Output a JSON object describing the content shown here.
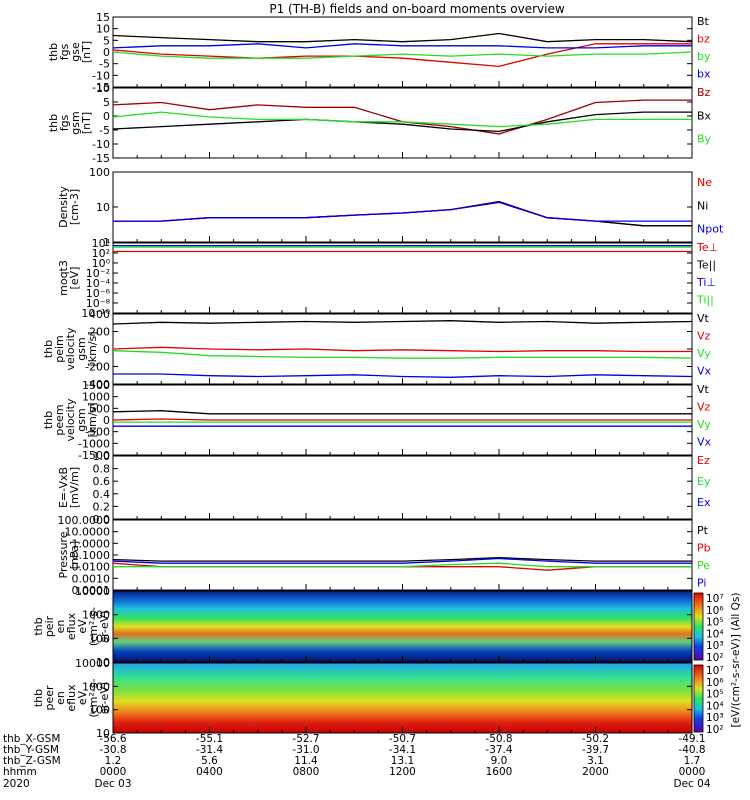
{
  "title": "P1  (TH-B) fields and on-board moments overview",
  "colors": {
    "black": "#000000",
    "red": "#e00000",
    "green": "#22dd22",
    "blue": "#0000e0",
    "darkred": "#a00000"
  },
  "panels": [
    {
      "ylabel": [
        "thb",
        "fgs",
        "gse",
        "[nT]"
      ],
      "yticks": [
        "15",
        "10",
        "5",
        "0",
        "-5",
        "-10",
        "-15"
      ],
      "legend": [
        {
          "t": "Bt",
          "c": "black"
        },
        {
          "t": "bz",
          "c": "red"
        },
        {
          "t": "by",
          "c": "green"
        },
        {
          "t": "bx",
          "c": "blue"
        }
      ]
    },
    {
      "ylabel": [
        "thb",
        "fgs",
        "gsm",
        "[nT]"
      ],
      "yticks": [
        "10",
        "5",
        "0",
        "-5",
        "-10",
        "-15"
      ],
      "legend": [
        {
          "t": "Bz",
          "c": "darkred"
        },
        {
          "t": "Bx",
          "c": "black"
        },
        {
          "t": "By",
          "c": "green"
        }
      ]
    },
    {
      "ylabel": [
        "Density",
        "[cm-3]"
      ],
      "yticks": [
        "100",
        "10",
        "1"
      ],
      "legend": [
        {
          "t": "Ne",
          "c": "red"
        },
        {
          "t": "Ni",
          "c": "black"
        },
        {
          "t": "Npot",
          "c": "blue"
        }
      ]
    },
    {
      "ylabel": [
        "moqt3",
        "[eV]"
      ],
      "yticks": [
        "10⁴",
        "10²",
        "10⁰",
        "10⁻²",
        "10⁻⁴",
        "10⁻⁶",
        "10⁻⁸",
        "10⁻¹⁰"
      ],
      "legend": [
        {
          "t": "Te⊥",
          "c": "red"
        },
        {
          "t": "Te||",
          "c": "black"
        },
        {
          "t": "Ti⊥",
          "c": "blue"
        },
        {
          "t": "Ti||",
          "c": "green"
        }
      ]
    },
    {
      "ylabel": [
        "thb",
        "peim",
        "velocity",
        "gsm",
        "[km/s]"
      ],
      "yticks": [
        "400",
        "200",
        "0",
        "-200",
        "-400"
      ],
      "legend": [
        {
          "t": "Vt",
          "c": "black"
        },
        {
          "t": "Vz",
          "c": "red"
        },
        {
          "t": "Vy",
          "c": "green"
        },
        {
          "t": "Vx",
          "c": "blue"
        }
      ]
    },
    {
      "ylabel": [
        "thb",
        "peem",
        "velocity",
        "gsm",
        "[km/s]"
      ],
      "yticks": [
        "1500",
        "1000",
        "500",
        "0",
        "-500",
        "-1000",
        "-1500"
      ],
      "legend": [
        {
          "t": "Vt",
          "c": "black"
        },
        {
          "t": "Vz",
          "c": "red"
        },
        {
          "t": "Vy",
          "c": "green"
        },
        {
          "t": "Vx",
          "c": "blue"
        }
      ]
    },
    {
      "ylabel": [
        "E=-VxB",
        "[mV/m]"
      ],
      "yticks": [
        "1.0",
        "0.8",
        "0.6",
        "0.4",
        "0.2",
        "0.0"
      ],
      "legend": [
        {
          "t": "Ez",
          "c": "red"
        },
        {
          "t": "Ey",
          "c": "green"
        },
        {
          "t": "Ex",
          "c": "blue"
        }
      ]
    },
    {
      "ylabel": [
        "Pressure",
        "[nPa]"
      ],
      "yticks": [
        "100.0000",
        "10.0000",
        "1.0000",
        "0.1000",
        "0.0100",
        "0.0010",
        "0.0001"
      ],
      "legend": [
        {
          "t": "Pt",
          "c": "black"
        },
        {
          "t": "Pb",
          "c": "red"
        },
        {
          "t": "Pe",
          "c": "green"
        },
        {
          "t": "Pi",
          "c": "blue"
        }
      ]
    },
    {
      "ylabel": [
        "thb",
        "peir",
        "en",
        "eflux",
        "eV",
        "(cm²-s-",
        "sr-eV)"
      ],
      "yticks": [
        "10000",
        "1000",
        "100",
        "10"
      ],
      "legend": []
    },
    {
      "ylabel": [
        "thb",
        "peer",
        "en",
        "eflux",
        "eV",
        "(cm²-s-",
        "sr-eV)"
      ],
      "yticks": [
        "10000",
        "1000",
        "100",
        "10"
      ],
      "legend": []
    }
  ],
  "colorbar": {
    "label": "[eV/(cm²-s-sr-eV)] (All Qs)",
    "ticks": [
      "10⁷",
      "10⁶",
      "10⁵",
      "10⁴",
      "10³",
      "10²"
    ]
  },
  "footer": {
    "row_labels": [
      "thb_X-GSM",
      "thb_Y-GSM",
      "thb_Z-GSM",
      "hhmm",
      "2020"
    ],
    "columns": [
      {
        "x": "-56.6",
        "y": "-30.8",
        "z": "1.2",
        "hhmm": "0000",
        "date": "Dec 03"
      },
      {
        "x": "-55.1",
        "y": "-31.4",
        "z": "5.6",
        "hhmm": "0400",
        "date": ""
      },
      {
        "x": "-52.7",
        "y": "-31.0",
        "z": "11.4",
        "hhmm": "0800",
        "date": ""
      },
      {
        "x": "-50.7",
        "y": "-34.1",
        "z": "13.1",
        "hhmm": "1200",
        "date": ""
      },
      {
        "x": "-50.8",
        "y": "-37.4",
        "z": "9.0",
        "hhmm": "1600",
        "date": ""
      },
      {
        "x": "-50.2",
        "y": "-39.7",
        "z": "3.1",
        "hhmm": "2000",
        "date": ""
      },
      {
        "x": "-49.1",
        "y": "-40.8",
        "z": "1.7",
        "hhmm": "0000",
        "date": "Dec 04"
      }
    ]
  },
  "chart_data": {
    "type": "line",
    "x_hours": [
      0,
      2,
      4,
      6,
      8,
      10,
      12,
      14,
      16,
      18,
      20,
      22,
      24
    ],
    "series": [
      {
        "panel": 0,
        "name": "Bt",
        "color": "black",
        "values": [
          8,
          7,
          6,
          5,
          5,
          6,
          5,
          6,
          9,
          5,
          6,
          6,
          5
        ]
      },
      {
        "panel": 0,
        "name": "bz",
        "color": "red",
        "values": [
          1,
          -1,
          -2,
          -3,
          -2,
          -2,
          -3,
          -5,
          -7,
          -1,
          4,
          4,
          4
        ]
      },
      {
        "panel": 0,
        "name": "by",
        "color": "green",
        "values": [
          0,
          -2,
          -3,
          -3,
          -3,
          -2,
          -1,
          -2,
          -1,
          -2,
          -1,
          -1,
          0
        ]
      },
      {
        "panel": 0,
        "name": "bx",
        "color": "blue",
        "values": [
          2,
          3,
          3,
          4,
          2,
          4,
          3,
          3,
          3,
          2,
          2,
          3,
          3
        ]
      },
      {
        "panel": 1,
        "name": "Bz",
        "color": "darkred",
        "values": [
          5,
          6,
          3,
          5,
          4,
          4,
          -2,
          -4,
          -7,
          -1,
          6,
          7,
          7
        ]
      },
      {
        "panel": 1,
        "name": "Bx",
        "color": "black",
        "values": [
          -5,
          -4,
          -3,
          -2,
          -1,
          -2,
          -3,
          -5,
          -6,
          -2,
          1,
          2,
          2
        ]
      },
      {
        "panel": 1,
        "name": "By",
        "color": "green",
        "values": [
          0,
          2,
          0,
          -1,
          -1,
          -2,
          -2,
          -3,
          -4,
          -3,
          -1,
          -1,
          -1
        ]
      },
      {
        "panel": 2,
        "name": "Ne",
        "color": "red",
        "values": [
          3,
          3,
          4,
          4,
          4,
          5,
          6,
          8,
          15,
          4,
          3,
          2,
          2
        ]
      },
      {
        "panel": 2,
        "name": "Ni",
        "color": "black",
        "values": [
          3,
          3,
          4,
          4,
          4,
          5,
          6,
          8,
          16,
          4,
          3,
          2,
          2
        ]
      },
      {
        "panel": 2,
        "name": "Npot",
        "color": "blue",
        "values": [
          3,
          3,
          4,
          4,
          4,
          5,
          6,
          8,
          15,
          4,
          3,
          3,
          3
        ]
      },
      {
        "panel": 3,
        "name": "Te⊥",
        "color": "red",
        "values": [
          200,
          200,
          200,
          200,
          200,
          200,
          200,
          200,
          200,
          200,
          200,
          200,
          200
        ]
      },
      {
        "panel": 3,
        "name": "Ti||",
        "color": "green",
        "values": [
          1500,
          1500,
          1500,
          1500,
          1500,
          1500,
          1500,
          1500,
          1500,
          1500,
          1500,
          1500,
          1500
        ]
      },
      {
        "panel": 3,
        "name": "Ti⊥",
        "color": "blue",
        "values": [
          3000,
          3000,
          3000,
          3000,
          3000,
          3000,
          3000,
          3000,
          3000,
          3000,
          3000,
          3000,
          3000
        ]
      },
      {
        "panel": 4,
        "name": "Vt",
        "color": "black",
        "values": [
          300,
          320,
          310,
          320,
          330,
          320,
          330,
          340,
          320,
          330,
          310,
          320,
          330
        ]
      },
      {
        "panel": 4,
        "name": "Vz",
        "color": "red",
        "values": [
          0,
          20,
          0,
          -10,
          0,
          -20,
          -10,
          -20,
          -30,
          -20,
          -20,
          -30,
          -30
        ]
      },
      {
        "panel": 4,
        "name": "Vy",
        "color": "green",
        "values": [
          -20,
          -40,
          -80,
          -90,
          -100,
          -100,
          -110,
          -110,
          -100,
          -100,
          -100,
          -100,
          -110
        ]
      },
      {
        "panel": 4,
        "name": "Vx",
        "color": "blue",
        "values": [
          -300,
          -300,
          -320,
          -330,
          -320,
          -310,
          -330,
          -340,
          -320,
          -330,
          -310,
          -320,
          -330
        ]
      },
      {
        "panel": 5,
        "name": "Vt",
        "color": "black",
        "values": [
          400,
          450,
          300,
          300,
          300,
          300,
          300,
          300,
          300,
          300,
          300,
          300,
          300
        ]
      },
      {
        "panel": 5,
        "name": "Vz",
        "color": "red",
        "values": [
          0,
          50,
          0,
          0,
          0,
          0,
          0,
          0,
          0,
          0,
          0,
          0,
          0
        ]
      },
      {
        "panel": 5,
        "name": "Vy",
        "color": "green",
        "values": [
          -100,
          -100,
          -100,
          -100,
          -100,
          -100,
          -100,
          -100,
          -100,
          -100,
          -100,
          -100,
          -100
        ]
      },
      {
        "panel": 5,
        "name": "Vx",
        "color": "blue",
        "values": [
          -300,
          -300,
          -300,
          -300,
          -300,
          -300,
          -300,
          -300,
          -300,
          -300,
          -300,
          -300,
          -300
        ]
      },
      {
        "panel": 7,
        "name": "Pt",
        "color": "black",
        "values": [
          0.04,
          0.03,
          0.03,
          0.03,
          0.03,
          0.03,
          0.03,
          0.04,
          0.06,
          0.04,
          0.03,
          0.03,
          0.03
        ]
      },
      {
        "panel": 7,
        "name": "Pb",
        "color": "red",
        "values": [
          0.02,
          0.01,
          0.01,
          0.01,
          0.01,
          0.01,
          0.01,
          0.01,
          0.01,
          0.005,
          0.01,
          0.01,
          0.01
        ]
      },
      {
        "panel": 7,
        "name": "Pe",
        "color": "green",
        "values": [
          0.01,
          0.01,
          0.01,
          0.01,
          0.01,
          0.01,
          0.01,
          0.015,
          0.02,
          0.01,
          0.01,
          0.01,
          0.01
        ]
      },
      {
        "panel": 7,
        "name": "Pi",
        "color": "blue",
        "values": [
          0.03,
          0.02,
          0.02,
          0.02,
          0.02,
          0.02,
          0.02,
          0.03,
          0.05,
          0.03,
          0.02,
          0.02,
          0.02
        ]
      }
    ]
  }
}
